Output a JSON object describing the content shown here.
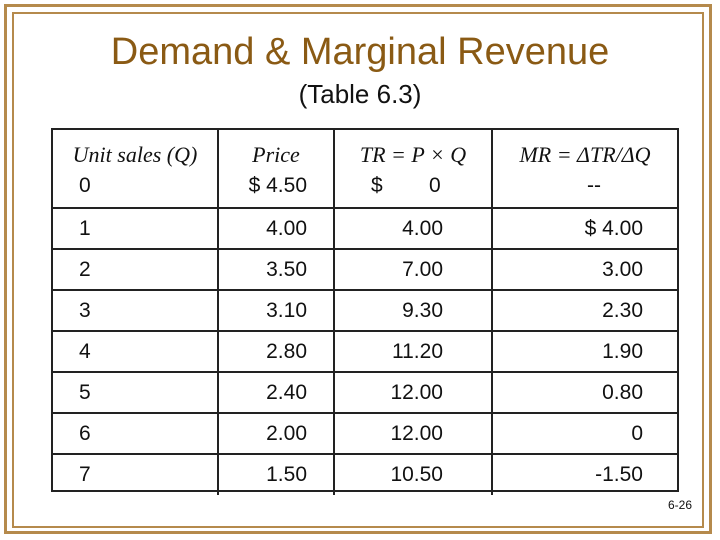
{
  "title": "Demand & Marginal Revenue",
  "subtitle": "(Table 6.3)",
  "headers": {
    "q": "Unit sales (Q)",
    "price": "Price",
    "tr": "TR = P × Q",
    "mr": "MR = ΔTR/ΔQ"
  },
  "row0": {
    "q": "0",
    "price": "$ 4.50",
    "tr_dollar": "$",
    "tr": "0",
    "mr": "--"
  },
  "rows": [
    {
      "q": "1",
      "price": "4.00",
      "tr": "4.00",
      "mr": "$ 4.00"
    },
    {
      "q": "2",
      "price": "3.50",
      "tr": "7.00",
      "mr": "3.00"
    },
    {
      "q": "3",
      "price": "3.10",
      "tr": "9.30",
      "mr": "2.30"
    },
    {
      "q": "4",
      "price": "2.80",
      "tr": "11.20",
      "mr": "1.90"
    },
    {
      "q": "5",
      "price": "2.40",
      "tr": "12.00",
      "mr": "0.80"
    },
    {
      "q": "6",
      "price": "2.00",
      "tr": "12.00",
      "mr": "0"
    },
    {
      "q": "7",
      "price": "1.50",
      "tr": "10.50",
      "mr": "-1.50"
    }
  ],
  "slide_number": "6-26",
  "colors": {
    "frame": "#b58a4c",
    "title": "#8a5a14"
  }
}
